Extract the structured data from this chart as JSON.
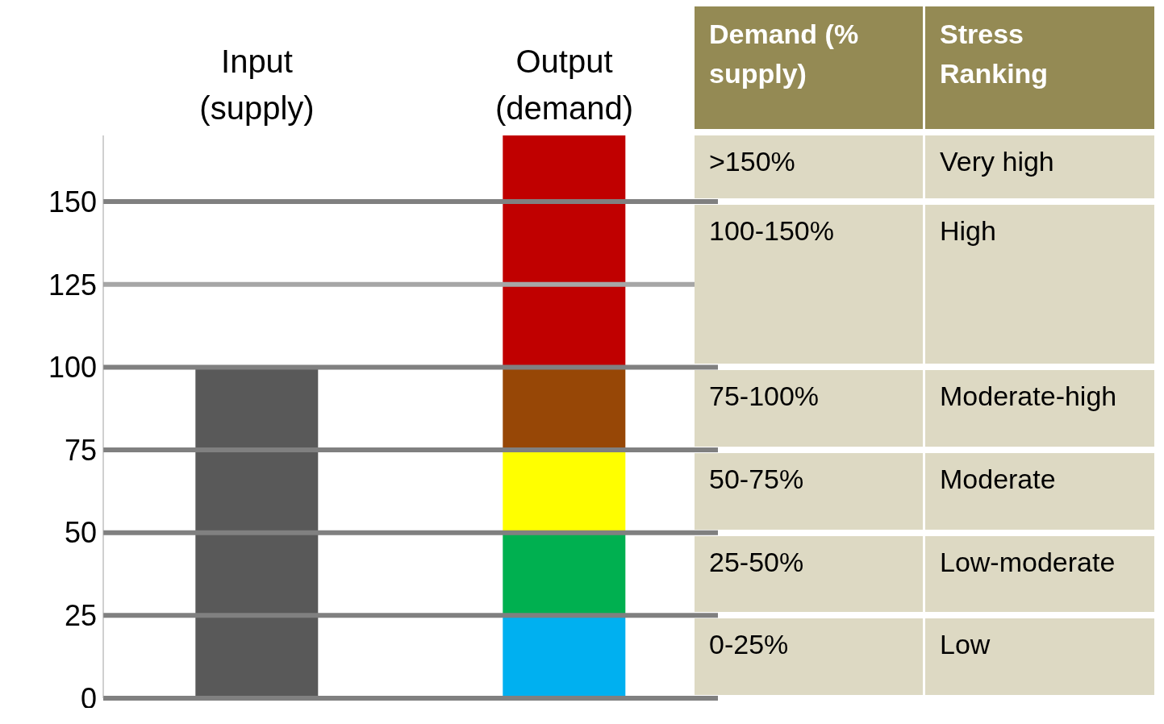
{
  "chart_data": [
    {
      "type": "bar",
      "categories": [
        "Input (supply)",
        "Output (demand)"
      ],
      "stacked": true,
      "series": [
        {
          "color": "#595959",
          "values": [
            100,
            null
          ]
        },
        {
          "color": "#00b0f0",
          "values": [
            null,
            25
          ]
        },
        {
          "color": "#00b050",
          "values": [
            null,
            25
          ]
        },
        {
          "color": "#ffff00",
          "values": [
            null,
            25
          ]
        },
        {
          "color": "#974706",
          "values": [
            null,
            25
          ]
        },
        {
          "color": "#c00000",
          "values": [
            null,
            70
          ]
        }
      ],
      "ylim": [
        0,
        170
      ],
      "yticks": [
        0,
        25,
        50,
        75,
        100,
        125,
        150
      ],
      "ref_lines": [
        {
          "axis": "y",
          "value": 25,
          "color": "#808080"
        },
        {
          "axis": "y",
          "value": 50,
          "color": "#808080"
        },
        {
          "axis": "y",
          "value": 75,
          "color": "#808080"
        },
        {
          "axis": "y",
          "value": 100,
          "color": "#808080"
        },
        {
          "axis": "y",
          "value": 125,
          "color": "#a6a6a6"
        },
        {
          "axis": "y",
          "value": 150,
          "color": "#808080"
        }
      ]
    },
    {
      "type": "other",
      "annotations": [
        "Demand (% supply)",
        "Stress Ranking",
        ">150%",
        "Very high",
        "100-150%",
        "High",
        "75-100%",
        "Moderate-high",
        "50-75%",
        "Moderate",
        "25-50%",
        "Low-moderate",
        "0-25%",
        "Low"
      ]
    }
  ]
}
